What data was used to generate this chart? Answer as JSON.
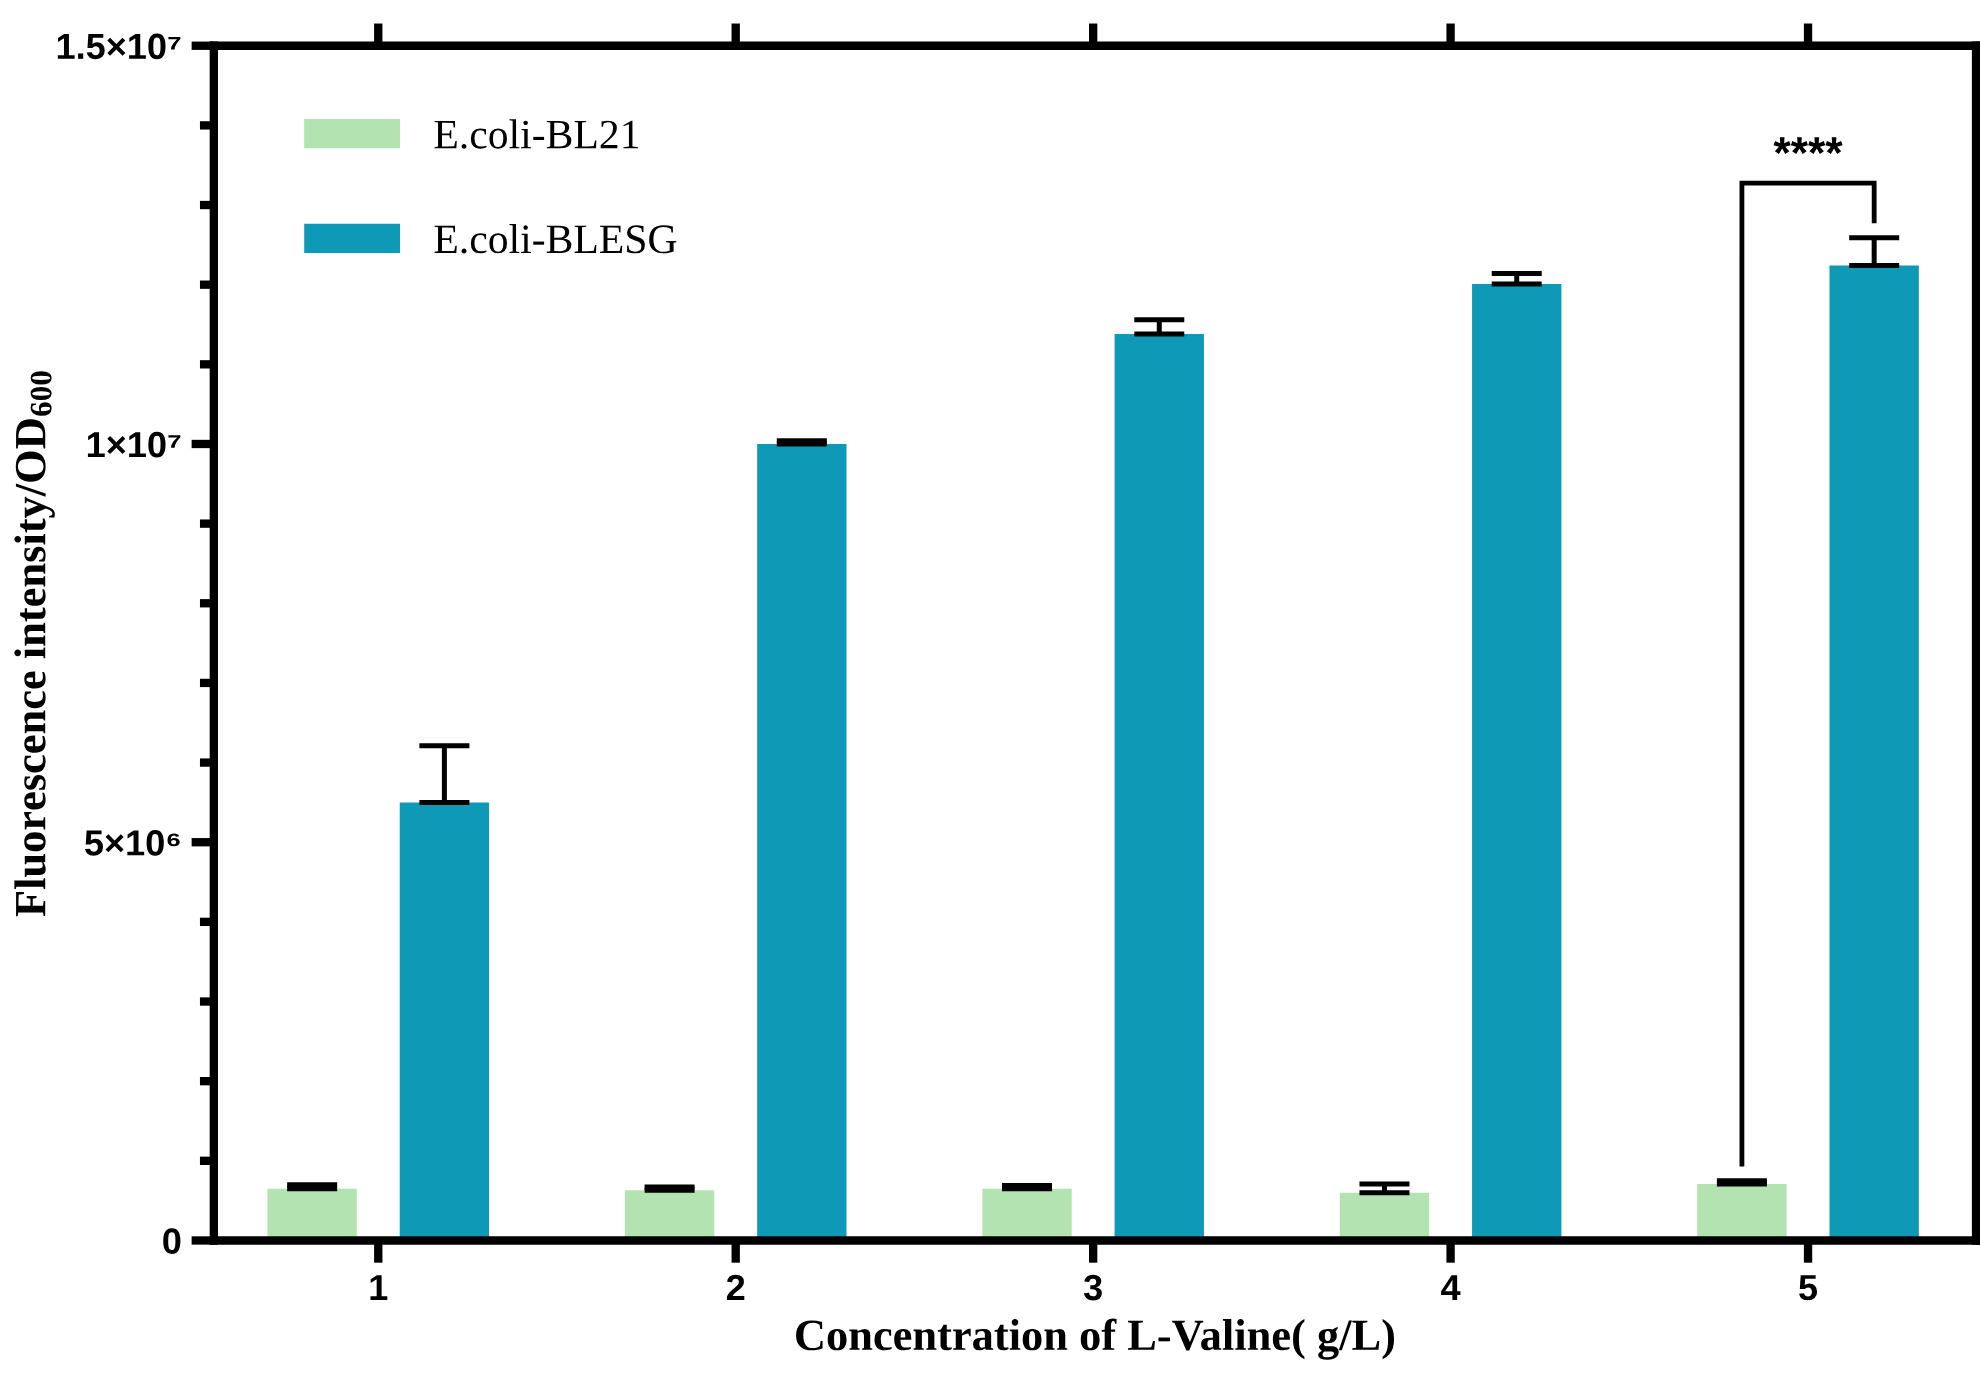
{
  "chart_data": {
    "type": "bar",
    "xlabel": "Concentration of L-Valine( g/L)",
    "ylabel": "Fluorescence intensity/OD$_{600}$",
    "categories": [
      "1",
      "2",
      "3",
      "4",
      "5"
    ],
    "series": [
      {
        "name": "E.coli-BL21",
        "color": "#b2e3b0",
        "values": [
          650000,
          630000,
          650000,
          600000,
          710000
        ],
        "errors": [
          [
            650000,
            700000
          ],
          [
            630000,
            670000
          ],
          [
            650000,
            690000
          ],
          [
            600000,
            710000
          ],
          [
            710000,
            750000
          ]
        ]
      },
      {
        "name": "E.coli-BLESG",
        "color": "#0e9ab6",
        "values": [
          5500000,
          10000000,
          11380000,
          12010000,
          12240000
        ],
        "errors": [
          [
            5500000,
            6210000
          ],
          [
            10000000,
            10040000
          ],
          [
            11380000,
            11560000
          ],
          [
            12010000,
            12140000
          ],
          [
            12240000,
            12590000
          ]
        ]
      }
    ],
    "ylim": [
      0,
      15000000
    ],
    "yticks": [
      {
        "value": 0,
        "label": "0"
      },
      {
        "value": 5000000,
        "label": "5×10⁶"
      },
      {
        "value": 10000000,
        "label": "1×10⁷"
      },
      {
        "value": 15000000,
        "label": "1.5×10⁷"
      }
    ],
    "annotations": [
      "****"
    ],
    "legend": "top left",
    "grid": false
  }
}
